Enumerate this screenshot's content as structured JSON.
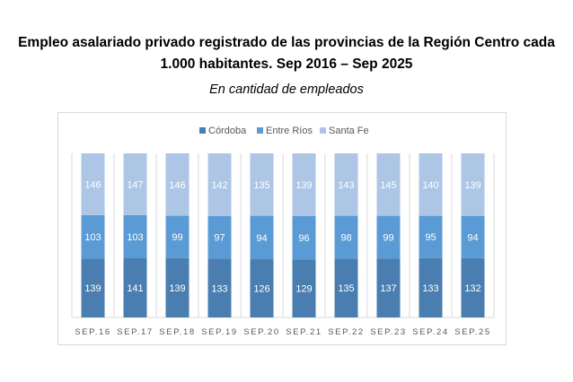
{
  "chart_data": {
    "type": "bar",
    "stacked": "percent",
    "title_line1": "Empleo asalariado privado registrado de las provincias de la Región Centro cada",
    "title_line2": "1.000 habitantes. Sep 2016 – Sep 2025",
    "subtitle": "En cantidad de empleados",
    "categories": [
      "SEP.16",
      "SEP.17",
      "SEP.18",
      "SEP.19",
      "SEP.20",
      "SEP.21",
      "SEP.22",
      "SEP.23",
      "SEP.24",
      "SEP.25"
    ],
    "series": [
      {
        "name": "Córdoba",
        "color": "#4a7eb0",
        "values": [
          139,
          141,
          139,
          133,
          126,
          129,
          135,
          137,
          133,
          132
        ]
      },
      {
        "name": "Entre Ríos",
        "color": "#5b9bd5",
        "values": [
          103,
          103,
          99,
          97,
          94,
          96,
          98,
          99,
          95,
          94
        ]
      },
      {
        "name": "Santa Fe",
        "color": "#adc6e6",
        "values": [
          146,
          147,
          146,
          142,
          135,
          139,
          143,
          145,
          140,
          139
        ]
      }
    ],
    "legend_position": "top",
    "grid": "vertical category separators"
  }
}
